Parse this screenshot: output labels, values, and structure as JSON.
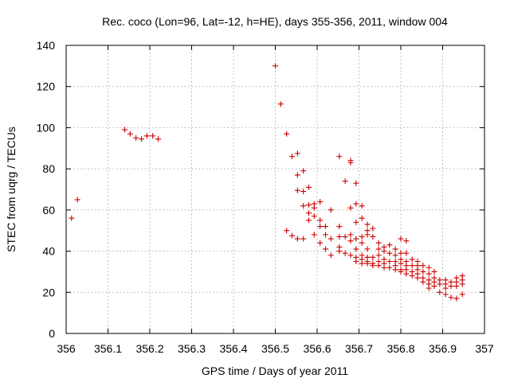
{
  "chart_data": {
    "type": "scatter",
    "title": "Rec. coco (Lon=96, Lat=-12, h=HE), days 355-356, 2011, window 004",
    "xlabel": "GPS time / Days of year 2011",
    "ylabel": "STEC from uqrg / TECUs",
    "xlim": [
      356,
      357
    ],
    "ylim": [
      0,
      140
    ],
    "x_ticks": [
      356,
      356.1,
      356.2,
      356.3,
      356.4,
      356.5,
      356.6,
      356.7,
      356.8,
      356.9,
      357
    ],
    "x_tick_labels": [
      "356",
      "356.1",
      "356.2",
      "356.3",
      "356.4",
      "356.5",
      "356.6",
      "356.7",
      "356.8",
      "356.9",
      "357"
    ],
    "y_ticks": [
      0,
      20,
      40,
      60,
      80,
      100,
      120,
      140
    ],
    "y_tick_labels": [
      "0",
      "20",
      "40",
      "60",
      "80",
      "100",
      "120",
      "140"
    ],
    "grid": true,
    "marker": "plus",
    "marker_color": "#cc0000",
    "series": [
      {
        "points": [
          [
            356.013,
            56
          ],
          [
            356.027,
            65
          ],
          [
            356.14,
            99
          ],
          [
            356.153,
            97
          ],
          [
            356.167,
            95
          ],
          [
            356.18,
            94.5
          ],
          [
            356.193,
            96
          ],
          [
            356.207,
            96
          ],
          [
            356.22,
            94.5
          ],
          [
            356.5,
            130
          ],
          [
            356.513,
            111.5
          ],
          [
            356.527,
            97
          ],
          [
            356.527,
            50
          ],
          [
            356.54,
            86
          ],
          [
            356.54,
            47.5
          ],
          [
            356.553,
            87.5
          ],
          [
            356.553,
            77
          ],
          [
            356.553,
            69.5
          ],
          [
            356.553,
            46
          ],
          [
            356.567,
            79
          ],
          [
            356.567,
            69
          ],
          [
            356.567,
            62
          ],
          [
            356.567,
            46
          ],
          [
            356.58,
            71
          ],
          [
            356.58,
            62.5
          ],
          [
            356.58,
            58.5
          ],
          [
            356.58,
            55
          ],
          [
            356.593,
            63
          ],
          [
            356.593,
            61
          ],
          [
            356.593,
            57
          ],
          [
            356.593,
            48
          ],
          [
            356.607,
            64
          ],
          [
            356.607,
            55
          ],
          [
            356.607,
            52
          ],
          [
            356.607,
            44
          ],
          [
            356.62,
            52
          ],
          [
            356.62,
            48
          ],
          [
            356.62,
            41
          ],
          [
            356.633,
            60
          ],
          [
            356.633,
            46
          ],
          [
            356.633,
            38
          ],
          [
            356.653,
            86
          ],
          [
            356.653,
            52
          ],
          [
            356.653,
            47
          ],
          [
            356.653,
            42
          ],
          [
            356.653,
            40
          ],
          [
            356.667,
            74
          ],
          [
            356.667,
            47
          ],
          [
            356.667,
            39
          ],
          [
            356.68,
            84
          ],
          [
            356.68,
            83
          ],
          [
            356.68,
            61
          ],
          [
            356.68,
            48
          ],
          [
            356.68,
            45
          ],
          [
            356.68,
            38
          ],
          [
            356.693,
            73
          ],
          [
            356.693,
            63
          ],
          [
            356.693,
            54
          ],
          [
            356.693,
            46
          ],
          [
            356.693,
            41
          ],
          [
            356.693,
            37
          ],
          [
            356.693,
            35
          ],
          [
            356.707,
            62
          ],
          [
            356.707,
            56
          ],
          [
            356.707,
            47
          ],
          [
            356.707,
            44
          ],
          [
            356.707,
            38
          ],
          [
            356.707,
            36
          ],
          [
            356.707,
            34
          ],
          [
            356.72,
            53
          ],
          [
            356.72,
            50
          ],
          [
            356.72,
            48
          ],
          [
            356.72,
            41
          ],
          [
            356.72,
            37
          ],
          [
            356.72,
            35
          ],
          [
            356.72,
            34
          ],
          [
            356.733,
            51
          ],
          [
            356.733,
            47
          ],
          [
            356.733,
            37
          ],
          [
            356.733,
            34
          ],
          [
            356.733,
            33
          ],
          [
            356.747,
            44
          ],
          [
            356.747,
            41
          ],
          [
            356.747,
            38
          ],
          [
            356.747,
            35
          ],
          [
            356.747,
            33
          ],
          [
            356.76,
            42
          ],
          [
            356.76,
            40
          ],
          [
            356.76,
            36
          ],
          [
            356.76,
            34
          ],
          [
            356.76,
            32
          ],
          [
            356.773,
            43
          ],
          [
            356.773,
            39
          ],
          [
            356.773,
            35
          ],
          [
            356.773,
            32
          ],
          [
            356.787,
            41
          ],
          [
            356.787,
            38
          ],
          [
            356.787,
            35
          ],
          [
            356.787,
            33
          ],
          [
            356.787,
            31
          ],
          [
            356.8,
            46
          ],
          [
            356.8,
            39
          ],
          [
            356.8,
            36
          ],
          [
            356.8,
            34
          ],
          [
            356.8,
            31
          ],
          [
            356.8,
            30
          ],
          [
            356.813,
            45
          ],
          [
            356.813,
            39
          ],
          [
            356.813,
            35
          ],
          [
            356.813,
            33
          ],
          [
            356.813,
            31
          ],
          [
            356.813,
            29
          ],
          [
            356.827,
            36
          ],
          [
            356.827,
            33
          ],
          [
            356.827,
            30
          ],
          [
            356.827,
            28
          ],
          [
            356.84,
            35
          ],
          [
            356.84,
            33
          ],
          [
            356.84,
            31
          ],
          [
            356.84,
            29
          ],
          [
            356.84,
            27
          ],
          [
            356.853,
            33
          ],
          [
            356.853,
            30
          ],
          [
            356.853,
            27
          ],
          [
            356.853,
            25
          ],
          [
            356.867,
            32
          ],
          [
            356.867,
            29
          ],
          [
            356.867,
            26
          ],
          [
            356.867,
            24
          ],
          [
            356.867,
            22
          ],
          [
            356.88,
            30
          ],
          [
            356.88,
            27
          ],
          [
            356.88,
            25
          ],
          [
            356.88,
            23
          ],
          [
            356.893,
            26
          ],
          [
            356.893,
            24
          ],
          [
            356.893,
            20
          ],
          [
            356.907,
            26
          ],
          [
            356.907,
            24
          ],
          [
            356.907,
            22
          ],
          [
            356.907,
            19
          ],
          [
            356.92,
            25
          ],
          [
            356.92,
            23
          ],
          [
            356.92,
            17.5
          ],
          [
            356.933,
            27
          ],
          [
            356.933,
            25
          ],
          [
            356.933,
            23
          ],
          [
            356.933,
            17
          ],
          [
            356.947,
            28
          ],
          [
            356.947,
            26
          ],
          [
            356.947,
            24
          ],
          [
            356.947,
            19
          ]
        ]
      }
    ]
  }
}
